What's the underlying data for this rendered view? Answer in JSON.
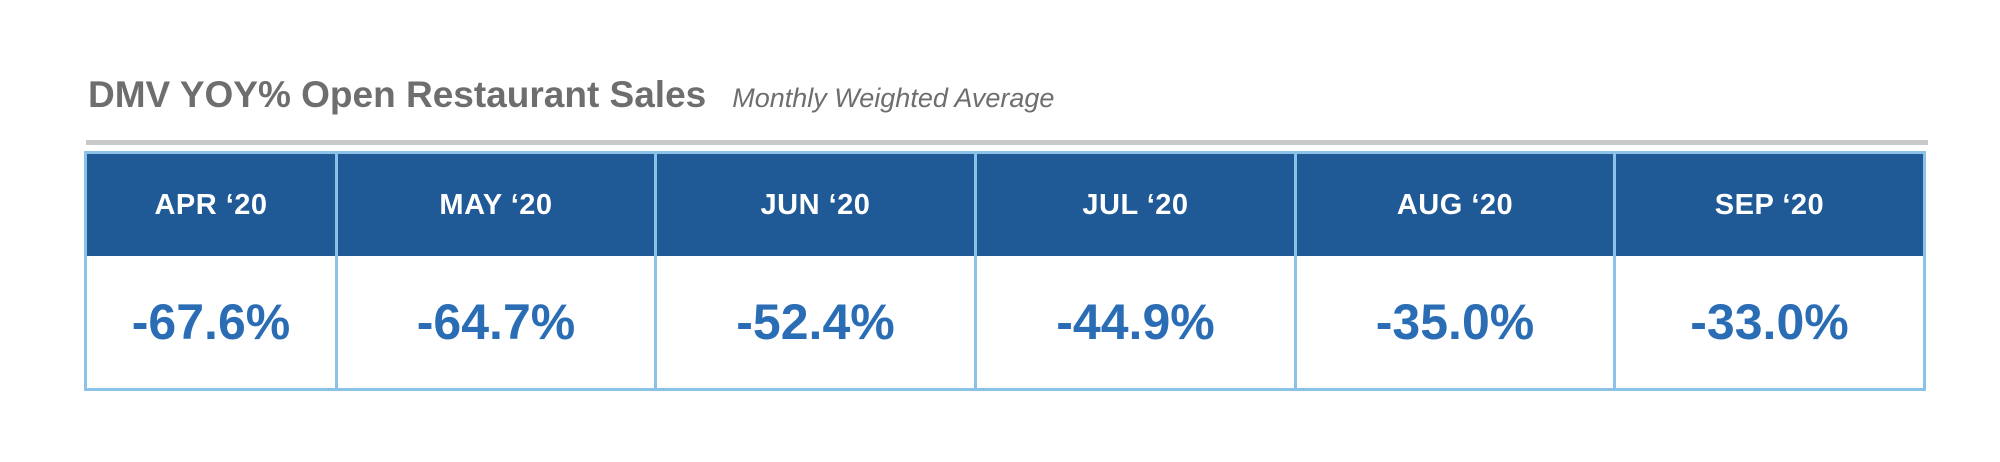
{
  "title": "DMV YOY% Open Restaurant Sales",
  "subtitle": "Monthly Weighted Average",
  "colors": {
    "title_text": "#6e6e6e",
    "header_background": "#1f5a97",
    "header_text": "#ffffff",
    "value_text": "#2a6db5",
    "grid_border": "#8cc1e8",
    "divider": "#c9c9c9"
  },
  "chart_data": {
    "type": "table",
    "title": "DMV YOY% Open Restaurant Sales",
    "subtitle": "Monthly Weighted Average",
    "columns": [
      {
        "header": "APR ‘20",
        "value": "-67.6%",
        "number": -67.6
      },
      {
        "header": "MAY ‘20",
        "value": "-64.7%",
        "number": -64.7
      },
      {
        "header": "JUN ‘20",
        "value": "-52.4%",
        "number": -52.4
      },
      {
        "header": "JUL ‘20",
        "value": "-44.9%",
        "number": -44.9
      },
      {
        "header": "AUG ‘20",
        "value": "-35.0%",
        "number": -35.0
      },
      {
        "header": "SEP ‘20",
        "value": "-33.0%",
        "number": -33.0
      }
    ]
  }
}
